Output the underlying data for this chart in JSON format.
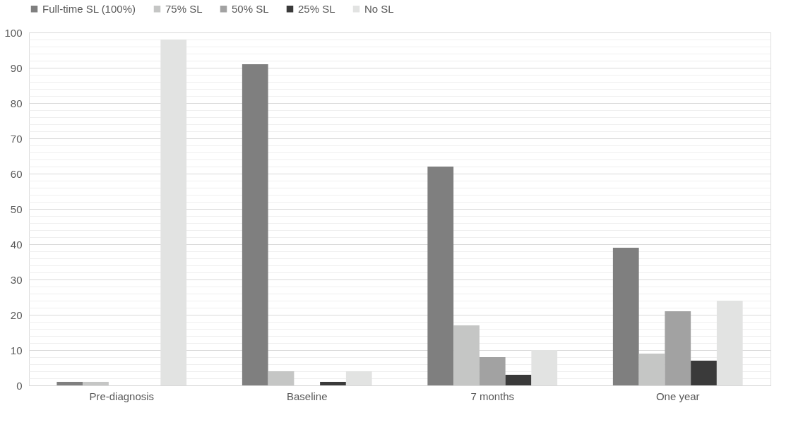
{
  "chart_data": {
    "type": "bar",
    "categories": [
      "Pre-diagnosis",
      "Baseline",
      "7 months",
      "One year"
    ],
    "series": [
      {
        "name": "Full-time SL (100%)",
        "color": "#7f7f7f",
        "values": [
          1,
          91,
          62,
          39
        ]
      },
      {
        "name": "75% SL",
        "color": "#c5c6c5",
        "values": [
          1,
          4,
          17,
          9
        ]
      },
      {
        "name": "50% SL",
        "color": "#a2a2a2",
        "values": [
          0,
          0,
          8,
          21
        ]
      },
      {
        "name": "25% SL",
        "color": "#3a3a3a",
        "values": [
          0,
          1,
          3,
          7
        ]
      },
      {
        "name": "No SL",
        "color": "#e2e3e2",
        "values": [
          98,
          4,
          10,
          24
        ]
      }
    ],
    "ylim": [
      0,
      100
    ],
    "yticks": [
      0,
      {
        "value": 2,
        "label": null
      },
      {
        "value": 4,
        "label": null
      },
      {
        "value": 6,
        "label": null
      },
      {
        "value": 8,
        "label": null
      },
      10,
      {
        "value": 12,
        "label": null
      },
      {
        "value": 14,
        "label": null
      },
      {
        "value": 16,
        "label": null
      },
      {
        "value": 18,
        "label": null
      },
      20,
      {
        "value": 22,
        "label": null
      },
      {
        "value": 24,
        "label": null
      },
      {
        "value": 26,
        "label": null
      },
      {
        "value": 28,
        "label": null
      },
      30,
      {
        "value": 32,
        "label": null
      },
      {
        "value": 34,
        "label": null
      },
      {
        "value": 36,
        "label": null
      },
      {
        "value": 38,
        "label": null
      },
      40,
      {
        "value": 42,
        "label": null
      },
      {
        "value": 44,
        "label": null
      },
      {
        "value": 46,
        "label": null
      },
      {
        "value": 48,
        "label": null
      },
      50,
      {
        "value": 52,
        "label": null
      },
      {
        "value": 54,
        "label": null
      },
      {
        "value": 56,
        "label": null
      },
      {
        "value": 58,
        "label": null
      },
      60,
      {
        "value": 62,
        "label": null
      },
      {
        "value": 64,
        "label": null
      },
      {
        "value": 66,
        "label": null
      },
      {
        "value": 68,
        "label": null
      },
      70,
      {
        "value": 72,
        "label": null
      },
      {
        "value": 74,
        "label": null
      },
      {
        "value": 76,
        "label": null
      },
      {
        "value": 78,
        "label": null
      },
      80,
      {
        "value": 82,
        "label": null
      },
      {
        "value": 84,
        "label": null
      },
      {
        "value": 86,
        "label": null
      },
      {
        "value": 88,
        "label": null
      },
      90,
      {
        "value": 92,
        "label": null
      },
      {
        "value": 94,
        "label": null
      },
      {
        "value": 96,
        "label": null
      },
      {
        "value": 98,
        "label": null
      },
      100
    ],
    "grid": true,
    "legend": "top"
  }
}
